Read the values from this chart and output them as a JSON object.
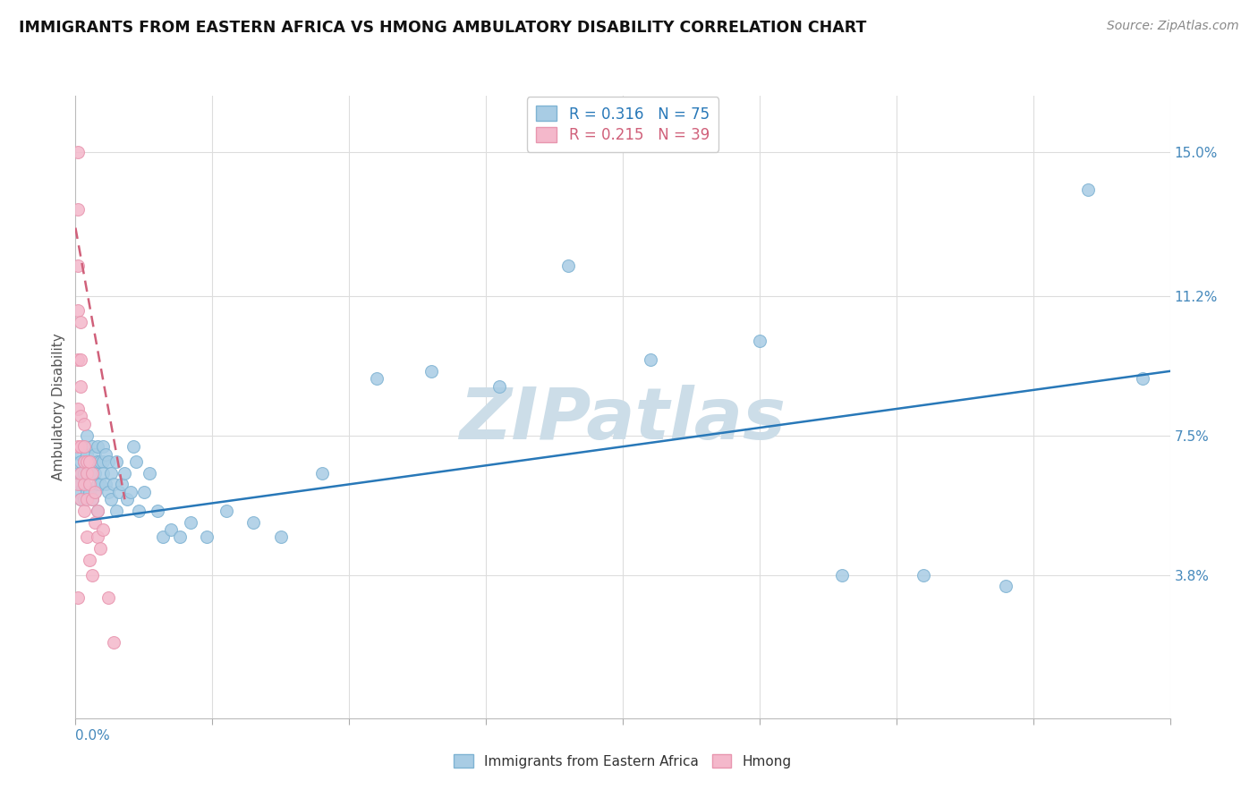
{
  "title": "IMMIGRANTS FROM EASTERN AFRICA VS HMONG AMBULATORY DISABILITY CORRELATION CHART",
  "source": "Source: ZipAtlas.com",
  "ylabel": "Ambulatory Disability",
  "xlim": [
    0.0,
    0.4
  ],
  "ylim": [
    0.0,
    0.165
  ],
  "blue_R": 0.316,
  "blue_N": 75,
  "pink_R": 0.215,
  "pink_N": 39,
  "blue_color": "#a8cce4",
  "pink_color": "#f4b8cb",
  "blue_edge_color": "#7fb3d3",
  "pink_edge_color": "#e896af",
  "blue_line_color": "#2878b8",
  "pink_line_color": "#d0607a",
  "watermark": "ZIPatlas",
  "watermark_color": "#ccdde8",
  "right_ytick_positions": [
    0.038,
    0.075,
    0.112,
    0.15
  ],
  "right_ytick_labels": [
    "3.8%",
    "7.5%",
    "11.2%",
    "15.0%"
  ],
  "blue_points_x": [
    0.001,
    0.001,
    0.002,
    0.002,
    0.002,
    0.002,
    0.002,
    0.003,
    0.003,
    0.003,
    0.003,
    0.003,
    0.004,
    0.004,
    0.004,
    0.004,
    0.005,
    0.005,
    0.005,
    0.006,
    0.006,
    0.006,
    0.006,
    0.007,
    0.007,
    0.007,
    0.008,
    0.008,
    0.008,
    0.008,
    0.009,
    0.009,
    0.01,
    0.01,
    0.01,
    0.011,
    0.011,
    0.012,
    0.012,
    0.013,
    0.013,
    0.014,
    0.015,
    0.015,
    0.016,
    0.017,
    0.018,
    0.019,
    0.02,
    0.021,
    0.022,
    0.023,
    0.025,
    0.027,
    0.03,
    0.032,
    0.035,
    0.038,
    0.042,
    0.048,
    0.055,
    0.065,
    0.075,
    0.09,
    0.11,
    0.13,
    0.155,
    0.18,
    0.21,
    0.25,
    0.28,
    0.31,
    0.34,
    0.37,
    0.39
  ],
  "blue_points_y": [
    0.065,
    0.06,
    0.07,
    0.068,
    0.065,
    0.062,
    0.058,
    0.072,
    0.068,
    0.065,
    0.062,
    0.058,
    0.075,
    0.07,
    0.065,
    0.06,
    0.068,
    0.065,
    0.06,
    0.072,
    0.068,
    0.065,
    0.058,
    0.07,
    0.065,
    0.06,
    0.072,
    0.068,
    0.062,
    0.055,
    0.068,
    0.062,
    0.072,
    0.068,
    0.065,
    0.07,
    0.062,
    0.068,
    0.06,
    0.065,
    0.058,
    0.062,
    0.068,
    0.055,
    0.06,
    0.062,
    0.065,
    0.058,
    0.06,
    0.072,
    0.068,
    0.055,
    0.06,
    0.065,
    0.055,
    0.048,
    0.05,
    0.048,
    0.052,
    0.048,
    0.055,
    0.052,
    0.048,
    0.065,
    0.09,
    0.092,
    0.088,
    0.12,
    0.095,
    0.1,
    0.038,
    0.038,
    0.035,
    0.14,
    0.09
  ],
  "pink_points_x": [
    0.001,
    0.001,
    0.001,
    0.001,
    0.001,
    0.001,
    0.001,
    0.001,
    0.001,
    0.002,
    0.002,
    0.002,
    0.002,
    0.002,
    0.002,
    0.002,
    0.003,
    0.003,
    0.003,
    0.003,
    0.003,
    0.004,
    0.004,
    0.004,
    0.004,
    0.005,
    0.005,
    0.005,
    0.006,
    0.006,
    0.006,
    0.007,
    0.007,
    0.008,
    0.008,
    0.009,
    0.01,
    0.012,
    0.014
  ],
  "pink_points_y": [
    0.15,
    0.135,
    0.12,
    0.108,
    0.095,
    0.082,
    0.072,
    0.062,
    0.032,
    0.105,
    0.095,
    0.088,
    0.08,
    0.072,
    0.065,
    0.058,
    0.078,
    0.072,
    0.068,
    0.062,
    0.055,
    0.068,
    0.065,
    0.058,
    0.048,
    0.068,
    0.062,
    0.042,
    0.065,
    0.058,
    0.038,
    0.06,
    0.052,
    0.055,
    0.048,
    0.045,
    0.05,
    0.032,
    0.02
  ]
}
